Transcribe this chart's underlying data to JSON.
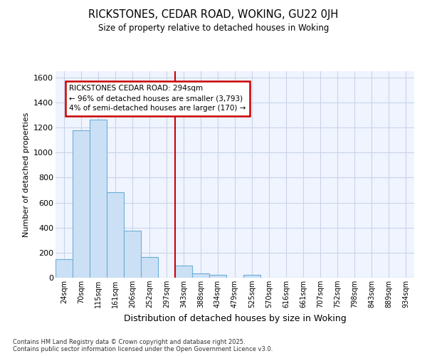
{
  "title1": "RICKSTONES, CEDAR ROAD, WOKING, GU22 0JH",
  "title2": "Size of property relative to detached houses in Woking",
  "xlabel": "Distribution of detached houses by size in Woking",
  "ylabel": "Number of detached properties",
  "categories": [
    "24sqm",
    "70sqm",
    "115sqm",
    "161sqm",
    "206sqm",
    "252sqm",
    "297sqm",
    "343sqm",
    "388sqm",
    "434sqm",
    "479sqm",
    "525sqm",
    "570sqm",
    "616sqm",
    "661sqm",
    "707sqm",
    "752sqm",
    "798sqm",
    "843sqm",
    "889sqm",
    "934sqm"
  ],
  "values": [
    150,
    1180,
    1265,
    685,
    375,
    165,
    0,
    95,
    35,
    20,
    0,
    25,
    0,
    0,
    0,
    0,
    0,
    0,
    0,
    0,
    0
  ],
  "bar_color": "#cce0f5",
  "bar_edge_color": "#6baed6",
  "vline_index": 6,
  "vline_color": "#cc0000",
  "annotation_text": "RICKSTONES CEDAR ROAD: 294sqm\n← 96% of detached houses are smaller (3,793)\n4% of semi-detached houses are larger (170) →",
  "ann_box_color": "#cc0000",
  "ylim": [
    0,
    1650
  ],
  "yticks": [
    0,
    200,
    400,
    600,
    800,
    1000,
    1200,
    1400,
    1600
  ],
  "fig_bg": "#ffffff",
  "ax_bg": "#f0f4ff",
  "grid_color": "#c8d4e8",
  "footer": "Contains HM Land Registry data © Crown copyright and database right 2025.\nContains public sector information licensed under the Open Government Licence v3.0."
}
